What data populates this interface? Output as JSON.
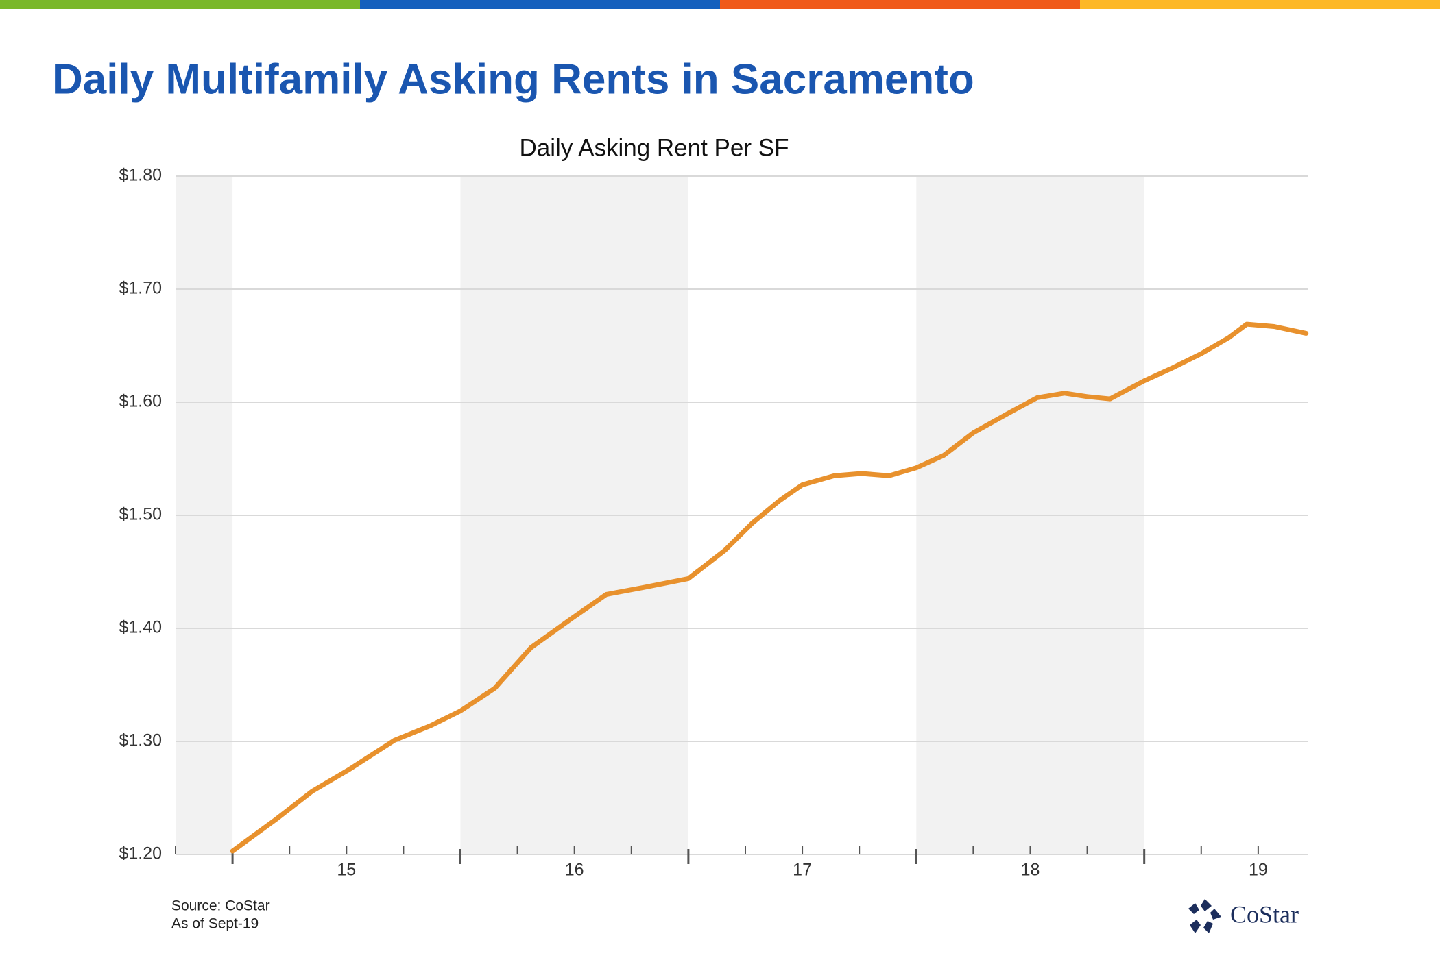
{
  "header": {
    "title": "Daily Multifamily Asking Rents in Sacramento"
  },
  "chart_data": {
    "type": "line",
    "title": "Daily Asking Rent Per SF",
    "x": [
      15.0,
      15.19,
      15.35,
      15.51,
      15.71,
      15.87,
      16.0,
      16.15,
      16.31,
      16.49,
      16.64,
      16.8,
      17.0,
      17.16,
      17.28,
      17.4,
      17.5,
      17.64,
      17.76,
      17.88,
      18.0,
      18.12,
      18.25,
      18.41,
      18.53,
      18.65,
      18.75,
      18.85,
      19.0,
      19.13,
      19.25,
      19.37,
      19.45,
      19.57,
      19.71
    ],
    "values": [
      1.203,
      1.231,
      1.256,
      1.275,
      1.301,
      1.314,
      1.327,
      1.347,
      1.383,
      1.409,
      1.43,
      1.436,
      1.444,
      1.469,
      1.493,
      1.513,
      1.527,
      1.535,
      1.537,
      1.535,
      1.542,
      1.553,
      1.573,
      1.591,
      1.604,
      1.608,
      1.605,
      1.603,
      1.619,
      1.631,
      1.643,
      1.657,
      1.669,
      1.667,
      1.661
    ],
    "color": "#e8912d",
    "xlim": [
      14.75,
      19.72
    ],
    "xticks": [
      {
        "value": 15.5,
        "label": "15"
      },
      {
        "value": 16.5,
        "label": "16"
      },
      {
        "value": 17.5,
        "label": "17"
      },
      {
        "value": 18.5,
        "label": "18"
      },
      {
        "value": 19.5,
        "label": "19"
      }
    ],
    "ylim": [
      1.2,
      1.8
    ],
    "yticks": [
      {
        "value": 1.2,
        "label": "$1.20"
      },
      {
        "value": 1.3,
        "label": "$1.30"
      },
      {
        "value": 1.4,
        "label": "$1.40"
      },
      {
        "value": 1.5,
        "label": "$1.50"
      },
      {
        "value": 1.6,
        "label": "$1.60"
      },
      {
        "value": 1.7,
        "label": "$1.70"
      },
      {
        "value": 1.8,
        "label": "$1.80"
      }
    ],
    "grid": true
  },
  "footer": {
    "source": "Source: CoStar",
    "date": "As of Sept-19",
    "logo": "CoStar"
  }
}
